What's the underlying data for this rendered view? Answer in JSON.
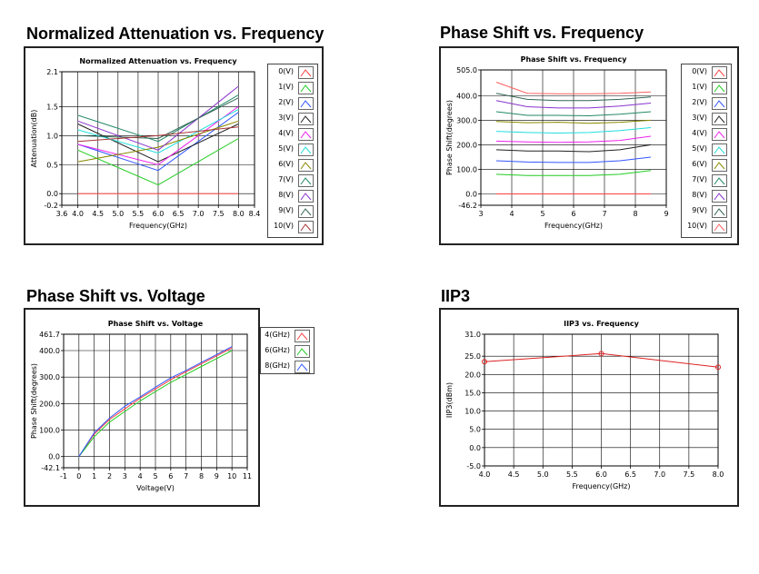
{
  "sections": {
    "attenuation": "Normalized Attenuation vs. Frequency",
    "phase_freq": "Phase Shift vs. Frequency",
    "phase_volt": "Phase Shift vs. Voltage",
    "iip3": "IIP3"
  },
  "chart_data": [
    {
      "id": "attenuation",
      "type": "line",
      "title": "Normalized Attenuation vs. Frequency",
      "xlabel": "Frequency(GHz)",
      "ylabel": "Attenuation(dB)",
      "xlim": [
        3.6,
        8.4
      ],
      "ylim": [
        -0.2,
        2.1
      ],
      "xticks": [
        "3.6",
        "4.0",
        "4.5",
        "5.0",
        "5.5",
        "6.0",
        "6.5",
        "7.0",
        "7.5",
        "8.0",
        "8.4"
      ],
      "yticks": [
        "-0.2",
        "0.0",
        "0.5",
        "1.0",
        "1.5",
        "2.1"
      ],
      "x": [
        4.0,
        6.0,
        8.0
      ],
      "series": [
        {
          "name": "0(V)",
          "color": "#ff4040",
          "values": [
            0.0,
            0.0,
            0.0
          ]
        },
        {
          "name": "1(V)",
          "color": "#22cc22",
          "values": [
            0.75,
            0.15,
            0.95
          ]
        },
        {
          "name": "2(V)",
          "color": "#3355ff",
          "values": [
            0.85,
            0.4,
            1.4
          ]
        },
        {
          "name": "3(V)",
          "color": "#222222",
          "values": [
            1.2,
            0.55,
            1.2
          ]
        },
        {
          "name": "4(V)",
          "color": "#ee22ee",
          "values": [
            0.85,
            0.5,
            1.5
          ]
        },
        {
          "name": "5(V)",
          "color": "#22dddd",
          "values": [
            1.1,
            0.7,
            1.45
          ]
        },
        {
          "name": "6(V)",
          "color": "#888800",
          "values": [
            0.55,
            0.8,
            1.25
          ]
        },
        {
          "name": "7(V)",
          "color": "#228866",
          "values": [
            1.35,
            0.9,
            1.7
          ]
        },
        {
          "name": "8(V)",
          "color": "#8833cc",
          "values": [
            1.25,
            0.75,
            1.85
          ]
        },
        {
          "name": "9(V)",
          "color": "#336655",
          "values": [
            1.0,
            0.95,
            1.65
          ]
        },
        {
          "name": "10(V)",
          "color": "#aa3333",
          "values": [
            0.9,
            1.0,
            1.15
          ]
        }
      ]
    },
    {
      "id": "phase_freq",
      "type": "line",
      "title": "Phase Shift vs. Frequency",
      "xlabel": "Frequency(GHz)",
      "ylabel": "Phase Shift(degrees)",
      "xlim": [
        3,
        9
      ],
      "ylim": [
        -46.2,
        505.0
      ],
      "xticks": [
        "3",
        "4",
        "5",
        "6",
        "7",
        "8",
        "9"
      ],
      "yticks": [
        "-46.2",
        "0.0",
        "100.0",
        "200.0",
        "300.0",
        "400.0",
        "505.0"
      ],
      "x": [
        3.5,
        4.5,
        5.5,
        6.5,
        7.5,
        8.5
      ],
      "series": [
        {
          "name": "0(V)",
          "color": "#ff4040",
          "values": [
            0,
            0,
            0,
            0,
            0,
            0
          ]
        },
        {
          "name": "1(V)",
          "color": "#22cc22",
          "values": [
            80,
            75,
            75,
            75,
            80,
            95
          ]
        },
        {
          "name": "2(V)",
          "color": "#3355ff",
          "values": [
            135,
            130,
            128,
            128,
            135,
            150
          ]
        },
        {
          "name": "3(V)",
          "color": "#222222",
          "values": [
            180,
            175,
            175,
            172,
            180,
            200
          ]
        },
        {
          "name": "4(V)",
          "color": "#ee22ee",
          "values": [
            215,
            212,
            210,
            212,
            218,
            235
          ]
        },
        {
          "name": "5(V)",
          "color": "#22dddd",
          "values": [
            255,
            250,
            248,
            250,
            258,
            270
          ]
        },
        {
          "name": "6(V)",
          "color": "#888800",
          "values": [
            295,
            290,
            292,
            288,
            292,
            300
          ]
        },
        {
          "name": "7(V)",
          "color": "#228866",
          "values": [
            335,
            320,
            320,
            318,
            325,
            335
          ]
        },
        {
          "name": "8(V)",
          "color": "#8833cc",
          "values": [
            380,
            355,
            350,
            350,
            358,
            370
          ]
        },
        {
          "name": "9(V)",
          "color": "#336655",
          "values": [
            410,
            385,
            380,
            380,
            385,
            395
          ]
        },
        {
          "name": "10(V)",
          "color": "#ff6060",
          "values": [
            455,
            410,
            408,
            408,
            410,
            415
          ]
        }
      ]
    },
    {
      "id": "phase_volt",
      "type": "line",
      "title": "Phase Shift vs. Voltage",
      "xlabel": "Voltage(V)",
      "ylabel": "Phase Shift(degrees)",
      "xlim": [
        -1,
        11
      ],
      "ylim": [
        -42.1,
        461.7
      ],
      "xticks": [
        "-1",
        "0",
        "1",
        "2",
        "3",
        "4",
        "5",
        "6",
        "7",
        "8",
        "9",
        "10",
        "11"
      ],
      "yticks": [
        "-42.1",
        "0.0",
        "100.0",
        "200.0",
        "300.0",
        "400.0",
        "461.7"
      ],
      "x": [
        0,
        1,
        2,
        3,
        4,
        5,
        6,
        7,
        8,
        9,
        10
      ],
      "series": [
        {
          "name": "4(GHz)",
          "color": "#ff4040",
          "values": [
            0,
            85,
            140,
            180,
            220,
            255,
            290,
            320,
            350,
            380,
            410
          ]
        },
        {
          "name": "6(GHz)",
          "color": "#22cc22",
          "values": [
            0,
            75,
            130,
            170,
            210,
            245,
            280,
            310,
            340,
            370,
            400
          ]
        },
        {
          "name": "8(GHz)",
          "color": "#3355ff",
          "values": [
            0,
            90,
            145,
            190,
            225,
            262,
            297,
            325,
            355,
            385,
            415
          ]
        }
      ]
    },
    {
      "id": "iip3",
      "type": "line",
      "title": "IIP3 vs. Frequency",
      "xlabel": "Frequency(GHz)",
      "ylabel": "IIP3(dBm)",
      "xlim": [
        4.0,
        8.0
      ],
      "ylim": [
        -5.0,
        31.0
      ],
      "xticks": [
        "4.0",
        "4.5",
        "5.0",
        "5.5",
        "6.0",
        "6.5",
        "7.0",
        "7.5",
        "8.0"
      ],
      "yticks": [
        "-5.0",
        "0.0",
        "5.0",
        "10.0",
        "15.0",
        "20.0",
        "25.0",
        "31.0"
      ],
      "x": [
        4.0,
        6.0,
        8.0
      ],
      "series": [
        {
          "name": "IIP3",
          "color": "#dd2222",
          "values": [
            23.5,
            25.7,
            22.0
          ]
        }
      ]
    }
  ]
}
